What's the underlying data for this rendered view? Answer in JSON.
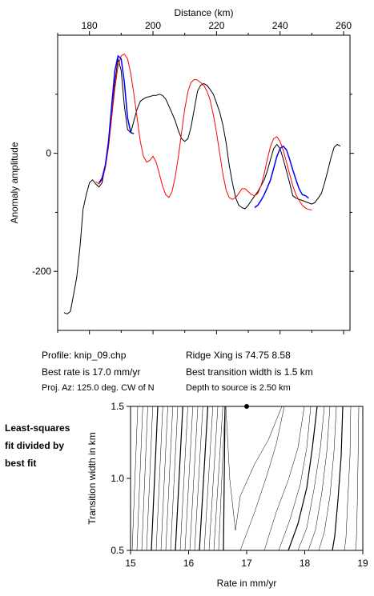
{
  "chart_data": [
    {
      "type": "line",
      "title": "",
      "xlabel": "Distance (km)",
      "ylabel": "Anomaly amplitude",
      "xlim": [
        170,
        262
      ],
      "ylim": [
        -300,
        200
      ],
      "xticks": [
        180,
        200,
        220,
        240,
        260
      ],
      "yticks": [
        0,
        -200
      ],
      "grid": false,
      "series": [
        {
          "color": "#000000",
          "x": [
            172,
            173,
            174,
            175,
            176,
            177,
            178,
            179,
            180,
            181,
            182,
            183,
            184,
            185,
            186,
            187,
            188,
            189,
            190,
            191,
            192,
            193,
            194,
            195,
            196,
            197,
            198,
            199,
            200,
            201,
            202,
            203,
            204,
            205,
            206,
            207,
            208,
            209,
            210,
            211,
            212,
            213,
            214,
            215,
            216,
            217,
            218,
            219,
            220,
            221,
            222,
            223,
            224,
            225,
            226,
            227,
            228,
            229,
            230,
            231,
            232,
            233,
            234,
            235,
            236,
            237,
            238,
            239,
            240,
            241,
            242,
            243,
            244,
            245,
            246,
            247,
            248,
            249,
            250,
            251,
            252,
            253,
            254,
            255,
            256,
            257,
            258,
            259
          ],
          "y": [
            -270,
            -272,
            -268,
            -240,
            -210,
            -160,
            -95,
            -70,
            -50,
            -45,
            -52,
            -57,
            -50,
            -20,
            15,
            60,
            120,
            160,
            140,
            80,
            40,
            35,
            55,
            75,
            88,
            92,
            95,
            96,
            98,
            98,
            100,
            98,
            92,
            80,
            68,
            55,
            38,
            25,
            20,
            25,
            45,
            75,
            105,
            115,
            118,
            115,
            108,
            100,
            85,
            70,
            48,
            18,
            -20,
            -50,
            -75,
            -88,
            -92,
            -94,
            -88,
            -80,
            -72,
            -65,
            -55,
            -45,
            -30,
            -10,
            8,
            15,
            8,
            -10,
            -30,
            -50,
            -72,
            -76,
            -78,
            -80,
            -82,
            -84,
            -86,
            -83,
            -76,
            -68,
            -50,
            -30,
            -8,
            10,
            15,
            12
          ]
        },
        {
          "color": "#ff0000",
          "x": [
            182,
            183,
            184,
            185,
            186,
            187,
            188,
            189,
            190,
            191,
            192,
            193,
            194,
            195,
            196,
            197,
            198,
            199,
            200,
            201,
            202,
            203,
            204,
            205,
            206,
            207,
            208,
            209,
            210,
            211,
            212,
            213,
            214,
            215,
            216,
            217,
            218,
            219,
            220,
            221,
            222,
            223,
            224,
            225,
            226,
            227,
            228,
            229,
            230,
            231,
            232,
            233,
            234,
            235,
            236,
            237,
            238,
            239,
            240,
            241,
            242,
            243,
            244,
            245,
            246,
            247,
            248,
            249,
            250
          ],
          "y": [
            -48,
            -52,
            -45,
            -25,
            10,
            60,
            110,
            148,
            165,
            168,
            160,
            135,
            100,
            60,
            20,
            -5,
            -15,
            -12,
            -5,
            -15,
            -35,
            -55,
            -70,
            -75,
            -65,
            -40,
            -5,
            35,
            75,
            105,
            120,
            125,
            124,
            120,
            115,
            105,
            90,
            65,
            35,
            0,
            -35,
            -62,
            -75,
            -78,
            -75,
            -68,
            -60,
            -60,
            -65,
            -70,
            -72,
            -68,
            -55,
            -35,
            -10,
            12,
            25,
            28,
            20,
            5,
            -15,
            -35,
            -55,
            -70,
            -80,
            -88,
            -93,
            -95,
            -96
          ]
        },
        {
          "color": "#0000ff",
          "x": [
            183,
            184,
            185,
            186,
            187,
            188,
            189,
            190,
            191,
            192,
            193,
            194
          ],
          "y": [
            -50,
            -42,
            -20,
            20,
            80,
            140,
            165,
            160,
            120,
            60,
            35,
            33
          ]
        },
        {
          "color": "#0000ff",
          "x": [
            232,
            233,
            234,
            235,
            236,
            237,
            238,
            239,
            240,
            241,
            242,
            243,
            244,
            245,
            246,
            247,
            248,
            249
          ],
          "y": [
            -92,
            -88,
            -80,
            -70,
            -58,
            -45,
            -25,
            -5,
            8,
            12,
            6,
            -10,
            -28,
            -45,
            -60,
            -70,
            -72,
            -76
          ]
        }
      ]
    },
    {
      "type": "contour",
      "title": "",
      "xlabel": "Rate in mm/yr",
      "ylabel": "Transition width in km",
      "xlim": [
        15,
        19
      ],
      "ylim": [
        0.5,
        1.5
      ],
      "xticks": [
        15,
        16,
        17,
        18,
        19
      ],
      "yticks": [
        0.5,
        1.0,
        1.5
      ],
      "best_fit": {
        "rate": 17.0,
        "width": 1.5
      },
      "side_label": [
        "Least-squares",
        "fit divided by",
        "best fit"
      ]
    }
  ],
  "info": {
    "profile": "Profile: knip_09.chp",
    "best_rate": "Best rate is 17.0 mm/yr",
    "proj_az": "Proj. Az: 125.0 deg. CW of N",
    "ridge_xing": "Ridge Xing is 74.75 8.58",
    "best_width": "Best transition width is 1.5 km",
    "depth": "Depth to source is   2.50 km"
  }
}
